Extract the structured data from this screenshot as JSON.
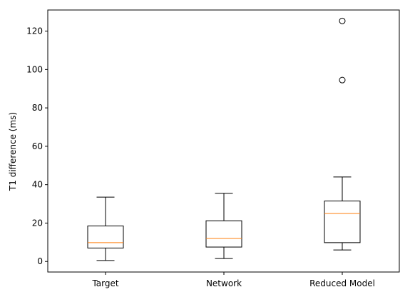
{
  "chart_data": {
    "type": "box",
    "title": "",
    "xlabel": "",
    "ylabel": "T1 difference (ms)",
    "ylim": [
      -5.5,
      131
    ],
    "yticks": [
      0,
      20,
      40,
      60,
      80,
      100,
      120
    ],
    "grid": false,
    "categories": [
      "Target",
      "Network",
      "Reduced Model"
    ],
    "boxes": [
      {
        "category": "Target",
        "whisker_low": 0.5,
        "q1": 7.0,
        "median": 9.8,
        "q3": 18.5,
        "whisker_high": 33.5,
        "outliers": []
      },
      {
        "category": "Network",
        "whisker_low": 1.5,
        "q1": 7.5,
        "median": 12.0,
        "q3": 21.2,
        "whisker_high": 35.5,
        "outliers": []
      },
      {
        "category": "Reduced Model",
        "whisker_low": 6.0,
        "q1": 9.8,
        "median": 25.0,
        "q3": 31.5,
        "whisker_high": 44.0,
        "outliers": [
          94.5,
          125.3
        ]
      }
    ],
    "colors": {
      "box": "#000000",
      "median": "#ff7f0e",
      "outlier": "#000000",
      "axes": "#000000"
    }
  }
}
